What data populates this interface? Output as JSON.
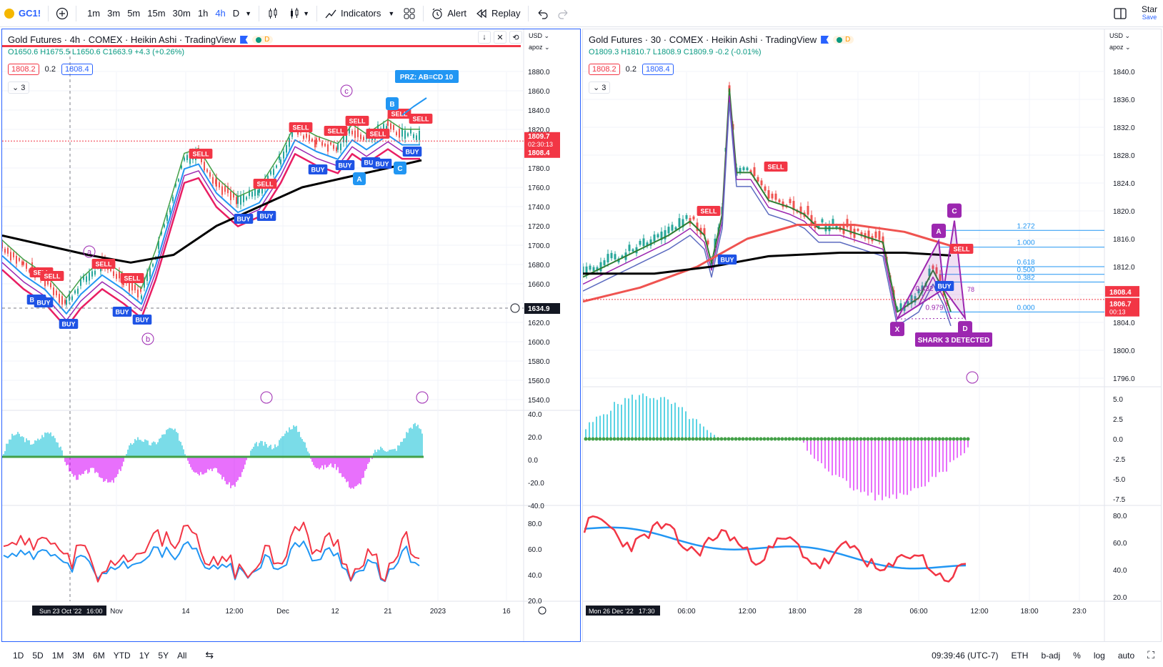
{
  "colors": {
    "blue": "#2962ff",
    "red": "#f23645",
    "green": "#089981",
    "purple": "#9c27b0",
    "teal": "#26c6da",
    "magenta": "#e040fb",
    "black": "#000000",
    "lightblue": "#2196f3"
  },
  "toolbar": {
    "symbol": "GC1!",
    "timeframes": [
      "1m",
      "3m",
      "5m",
      "15m",
      "30m",
      "1h",
      "4h",
      "D"
    ],
    "active_timeframe": "4h",
    "indicators_label": "Indicators",
    "alert_label": "Alert",
    "replay_label": "Replay",
    "star_label": "Star",
    "save_label": "Save"
  },
  "left_chart": {
    "title": "Gold Futures · 4h · COMEX · Heikin Ashi · TradingView",
    "ohlc": "O1650.6 H1675.5 L1650.6 C1663.9 +4.3 (+0.26%)",
    "bid": "1808.2",
    "spread": "0.2",
    "ask": "1808.4",
    "indicator_count": "3",
    "currency": "USD",
    "scale_mode": "apoz",
    "price_ticks": [
      "1880.0",
      "1860.0",
      "1840.0",
      "1820.0",
      "1800.0",
      "1780.0",
      "1760.0",
      "1740.0",
      "1720.0",
      "1700.0",
      "1680.0",
      "1660.0",
      "1620.0",
      "1600.0",
      "1580.0",
      "1560.0",
      "1540.0"
    ],
    "last_price": "1809.7",
    "countdown": "02:30:13",
    "ask_label": "1808.4",
    "crosshair_price": "1634.9",
    "osc_ticks": [
      "40.0",
      "20.0",
      "0.0",
      "-20.0",
      "-40.0"
    ],
    "rsi_ticks": [
      "80.0",
      "60.0",
      "40.0",
      "20.0"
    ],
    "date_label": "Sun 23 Oct '22",
    "time_label": "16:00",
    "time_ticks": [
      "Nov",
      "14",
      "12:00",
      "Dec",
      "12",
      "21",
      "2023",
      "16"
    ],
    "prz_label": "PRZ: AB=CD 10",
    "wave_labels": [
      "a",
      "b",
      "c"
    ],
    "pattern_points": [
      "A",
      "B",
      "C"
    ],
    "sell_label": "SELL",
    "buy_label": "BUY"
  },
  "right_chart": {
    "title": "Gold Futures · 30 · COMEX · Heikin Ashi · TradingView",
    "ohlc": "O1809.3 H1810.7 L1808.9 C1809.9 -0.2 (-0.01%)",
    "bid": "1808.2",
    "spread": "0.2",
    "ask": "1808.4",
    "indicator_count": "3",
    "currency": "USD",
    "scale_mode": "apoz",
    "price_ticks": [
      "1840.0",
      "1836.0",
      "1832.0",
      "1828.0",
      "1824.0",
      "1820.0",
      "1816.0",
      "1812.0",
      "1808.4",
      "1806.7",
      "1804.0",
      "1800.0",
      "1796.0"
    ],
    "countdown": "00:13",
    "osc_ticks": [
      "5.0",
      "2.5",
      "0.0",
      "-2.5",
      "-5.0",
      "-7.5"
    ],
    "rsi_ticks": [
      "80.0",
      "60.0",
      "40.0",
      "20.0"
    ],
    "date_label": "Mon 26 Dec '22",
    "time_label": "17:30",
    "time_ticks": [
      "06:00",
      "12:00",
      "18:00",
      "28",
      "06:00",
      "12:00",
      "18:00",
      "23:0"
    ],
    "fib_levels": [
      "1.272",
      "1.000",
      "0.618",
      "0.500",
      "0.382",
      "0.000"
    ],
    "harmonic_ratios": [
      "0.432",
      "0.979",
      "78"
    ],
    "shark_label": "SHARK 3 DETECTED",
    "pattern_points": [
      "X",
      "A",
      "C",
      "D"
    ],
    "sell_label": "SELL",
    "buy_label": "BUY"
  },
  "bottom_bar": {
    "ranges": [
      "1D",
      "5D",
      "1M",
      "3M",
      "6M",
      "YTD",
      "1Y",
      "5Y",
      "All"
    ],
    "clock": "09:39:46 (UTC-7)",
    "session": "ETH",
    "adj": "b-adj",
    "pct": "%",
    "log": "log",
    "auto": "auto"
  }
}
